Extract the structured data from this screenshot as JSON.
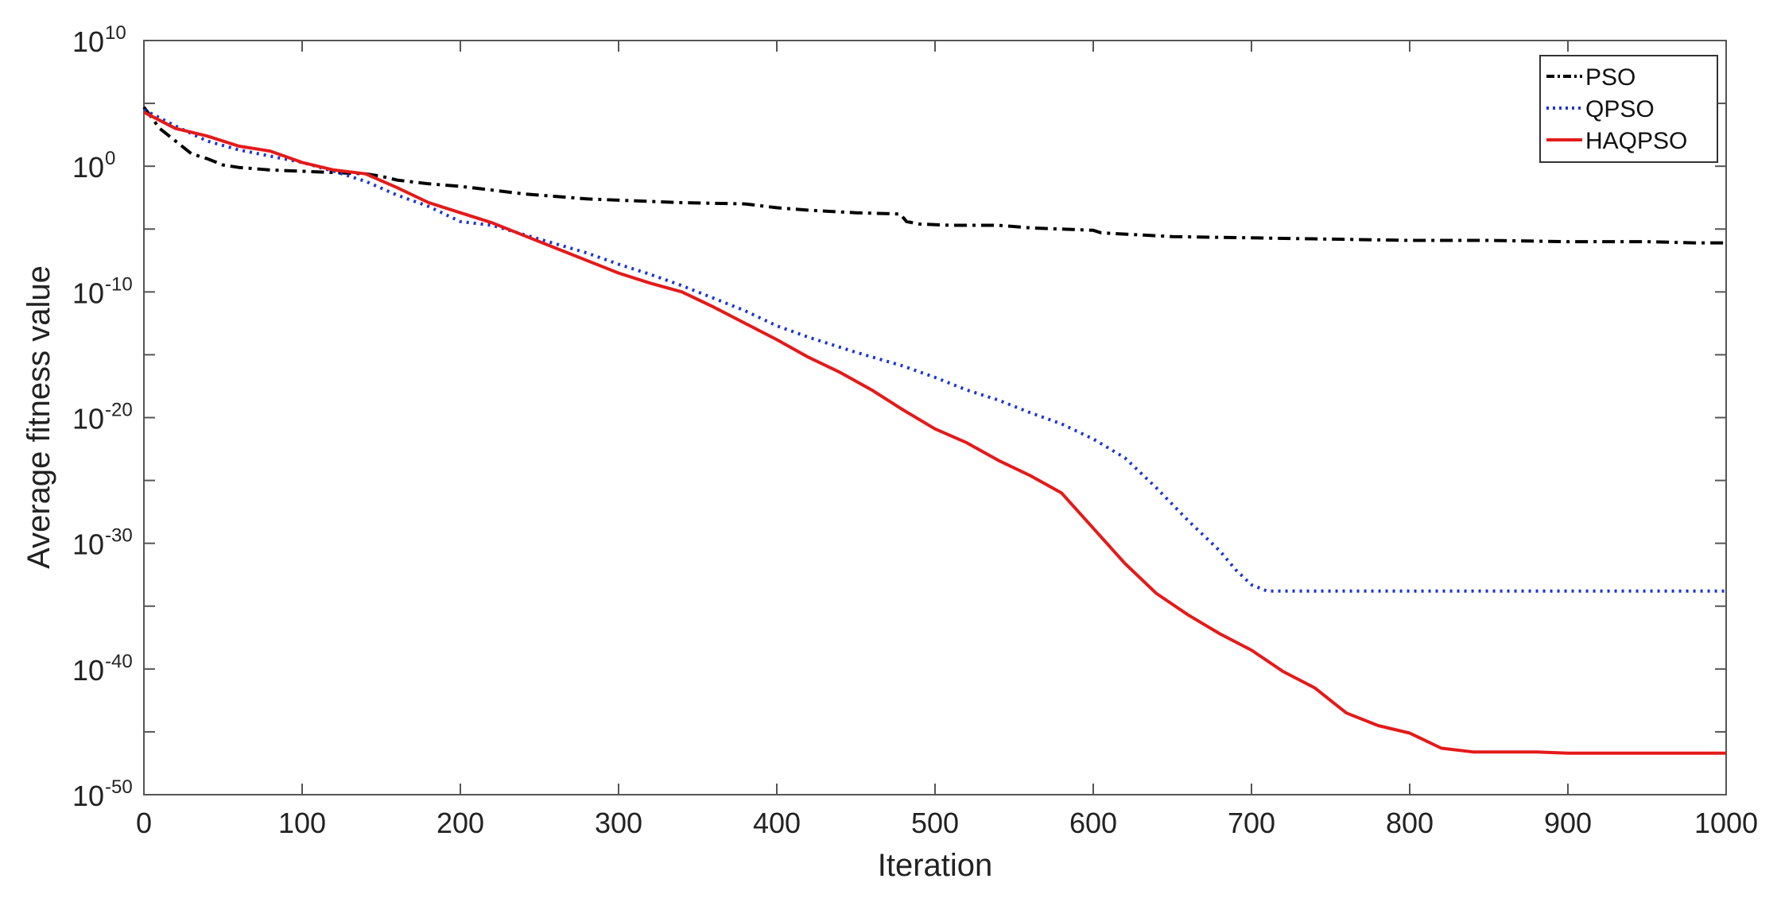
{
  "chart_data": {
    "type": "line",
    "title": "",
    "xlabel": "Iteration",
    "ylabel": "Average fitness value",
    "xlim": [
      0,
      1000
    ],
    "ylim_exponent": [
      -50,
      10
    ],
    "yscale": "log",
    "x_ticks": [
      "0",
      "100",
      "200",
      "300",
      "400",
      "500",
      "600",
      "700",
      "800",
      "900",
      "1000"
    ],
    "y_ticks": [
      {
        "base": "10",
        "exp": "10"
      },
      {
        "base": "10",
        "exp": "0"
      },
      {
        "base": "10",
        "exp": "-10"
      },
      {
        "base": "10",
        "exp": "-20"
      },
      {
        "base": "10",
        "exp": "-30"
      },
      {
        "base": "10",
        "exp": "-40"
      },
      {
        "base": "10",
        "exp": "-50"
      }
    ],
    "grid": false,
    "legend_position": "top-right",
    "series": [
      {
        "name": "PSO",
        "color": "#000000",
        "style": "dashdot",
        "x": [
          0,
          10,
          20,
          30,
          40,
          50,
          60,
          80,
          100,
          120,
          140,
          150,
          160,
          180,
          200,
          220,
          240,
          260,
          280,
          300,
          340,
          380,
          400,
          420,
          450,
          478,
          482,
          490,
          510,
          540,
          560,
          600,
          605,
          620,
          650,
          700,
          750,
          800,
          850,
          900,
          950,
          980,
          1000
        ],
        "y_log10": [
          4.7,
          3.0,
          2.0,
          1.0,
          0.6,
          0.1,
          -0.1,
          -0.3,
          -0.4,
          -0.5,
          -0.6,
          -0.8,
          -1.1,
          -1.4,
          -1.6,
          -1.9,
          -2.2,
          -2.4,
          -2.6,
          -2.7,
          -2.9,
          -3.0,
          -3.3,
          -3.5,
          -3.7,
          -3.8,
          -4.4,
          -4.6,
          -4.7,
          -4.7,
          -4.9,
          -5.1,
          -5.3,
          -5.4,
          -5.6,
          -5.7,
          -5.8,
          -5.9,
          -5.9,
          -6.0,
          -6.0,
          -6.1,
          -6.1
        ]
      },
      {
        "name": "QPSO",
        "color": "#1a35d4",
        "style": "dotted",
        "x": [
          0,
          20,
          40,
          60,
          80,
          100,
          120,
          140,
          160,
          180,
          200,
          220,
          250,
          280,
          300,
          320,
          340,
          360,
          380,
          400,
          420,
          450,
          480,
          500,
          520,
          540,
          560,
          580,
          600,
          620,
          640,
          660,
          680,
          690,
          700,
          710,
          800,
          900,
          1000
        ],
        "y_log10": [
          4.5,
          3.2,
          2.0,
          1.3,
          0.8,
          0.3,
          -0.4,
          -1.2,
          -2.3,
          -3.2,
          -4.4,
          -4.7,
          -5.8,
          -6.9,
          -7.8,
          -8.6,
          -9.5,
          -10.5,
          -11.5,
          -12.7,
          -13.6,
          -14.8,
          -15.9,
          -16.8,
          -17.8,
          -18.6,
          -19.6,
          -20.5,
          -21.7,
          -23.2,
          -25.6,
          -28.2,
          -30.6,
          -32.1,
          -33.3,
          -33.8,
          -33.8,
          -33.8,
          -33.8
        ]
      },
      {
        "name": "HAQPSO",
        "color": "#e41a1a",
        "style": "solid",
        "x": [
          0,
          20,
          40,
          60,
          80,
          100,
          120,
          140,
          160,
          180,
          200,
          220,
          240,
          260,
          280,
          300,
          320,
          340,
          360,
          380,
          400,
          420,
          440,
          460,
          480,
          500,
          520,
          540,
          560,
          580,
          600,
          620,
          640,
          660,
          680,
          700,
          720,
          740,
          750,
          760,
          780,
          800,
          820,
          840,
          860,
          880,
          900,
          920,
          1000
        ],
        "y_log10": [
          4.3,
          3.0,
          2.4,
          1.6,
          1.2,
          0.3,
          -0.3,
          -0.6,
          -1.7,
          -2.9,
          -3.7,
          -4.5,
          -5.5,
          -6.5,
          -7.5,
          -8.5,
          -9.3,
          -10.0,
          -11.2,
          -12.5,
          -13.8,
          -15.2,
          -16.4,
          -17.8,
          -19.4,
          -20.9,
          -22.0,
          -23.4,
          -24.6,
          -26.0,
          -28.8,
          -31.6,
          -34.0,
          -35.7,
          -37.2,
          -38.5,
          -40.2,
          -41.5,
          -42.5,
          -43.5,
          -44.5,
          -45.1,
          -46.3,
          -46.6,
          -46.6,
          -46.6,
          -46.7,
          -46.7,
          -46.7
        ]
      }
    ]
  }
}
